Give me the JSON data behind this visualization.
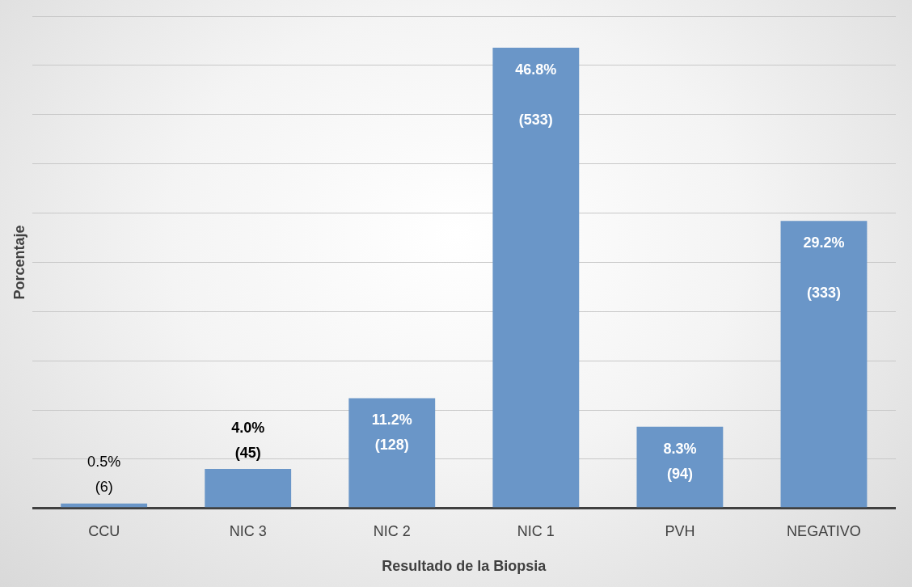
{
  "chart_data": {
    "type": "bar",
    "xlabel": "Resultado de la Biopsia",
    "ylabel": "Porcentaje",
    "categories": [
      "CCU",
      "NIC 3",
      "NIC 2",
      "NIC 1",
      "PVH",
      "NEGATIVO"
    ],
    "values": [
      0.5,
      4.0,
      11.2,
      46.8,
      8.3,
      29.2
    ],
    "value_labels": [
      "0.5%\n(6)",
      "4.0%\n(45)",
      "11.2%\n(128)",
      "46.8%\n\n(533)",
      "8.3%\n(94)",
      "29.2%\n\n(333)"
    ],
    "color": "#6a96c8",
    "grid": "y",
    "tick_labels": "x",
    "legend": false
  }
}
